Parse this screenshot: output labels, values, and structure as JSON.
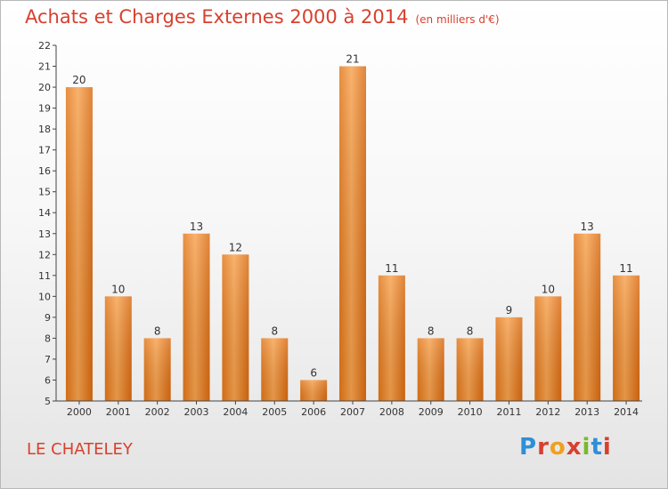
{
  "chart_data": {
    "type": "bar",
    "title": "Achats et Charges Externes 2000 à 2014",
    "subtitle": "(en milliers d'€)",
    "categories": [
      "2000",
      "2001",
      "2002",
      "2003",
      "2004",
      "2005",
      "2006",
      "2007",
      "2008",
      "2009",
      "2010",
      "2011",
      "2012",
      "2013",
      "2014"
    ],
    "values": [
      20,
      10,
      8,
      13,
      12,
      8,
      6,
      21,
      11,
      8,
      8,
      9,
      10,
      13,
      11
    ],
    "ylim": [
      5,
      22
    ],
    "yticks": [
      5,
      6,
      7,
      8,
      9,
      10,
      11,
      12,
      13,
      14,
      15,
      16,
      17,
      18,
      19,
      20,
      21,
      22
    ],
    "grid": false,
    "bar_color": "#f08a2c",
    "xlabel": "",
    "ylabel": ""
  },
  "footer": {
    "commune": "LE CHATELEY",
    "logo_text": "Proxiti"
  },
  "colors": {
    "title": "#d8402e",
    "axis": "#444444",
    "logo_letters": [
      "#2e8fd8",
      "#d8402e",
      "#f0a020",
      "#d8402e",
      "#7ab830",
      "#2e8fd8",
      "#d8402e"
    ]
  }
}
